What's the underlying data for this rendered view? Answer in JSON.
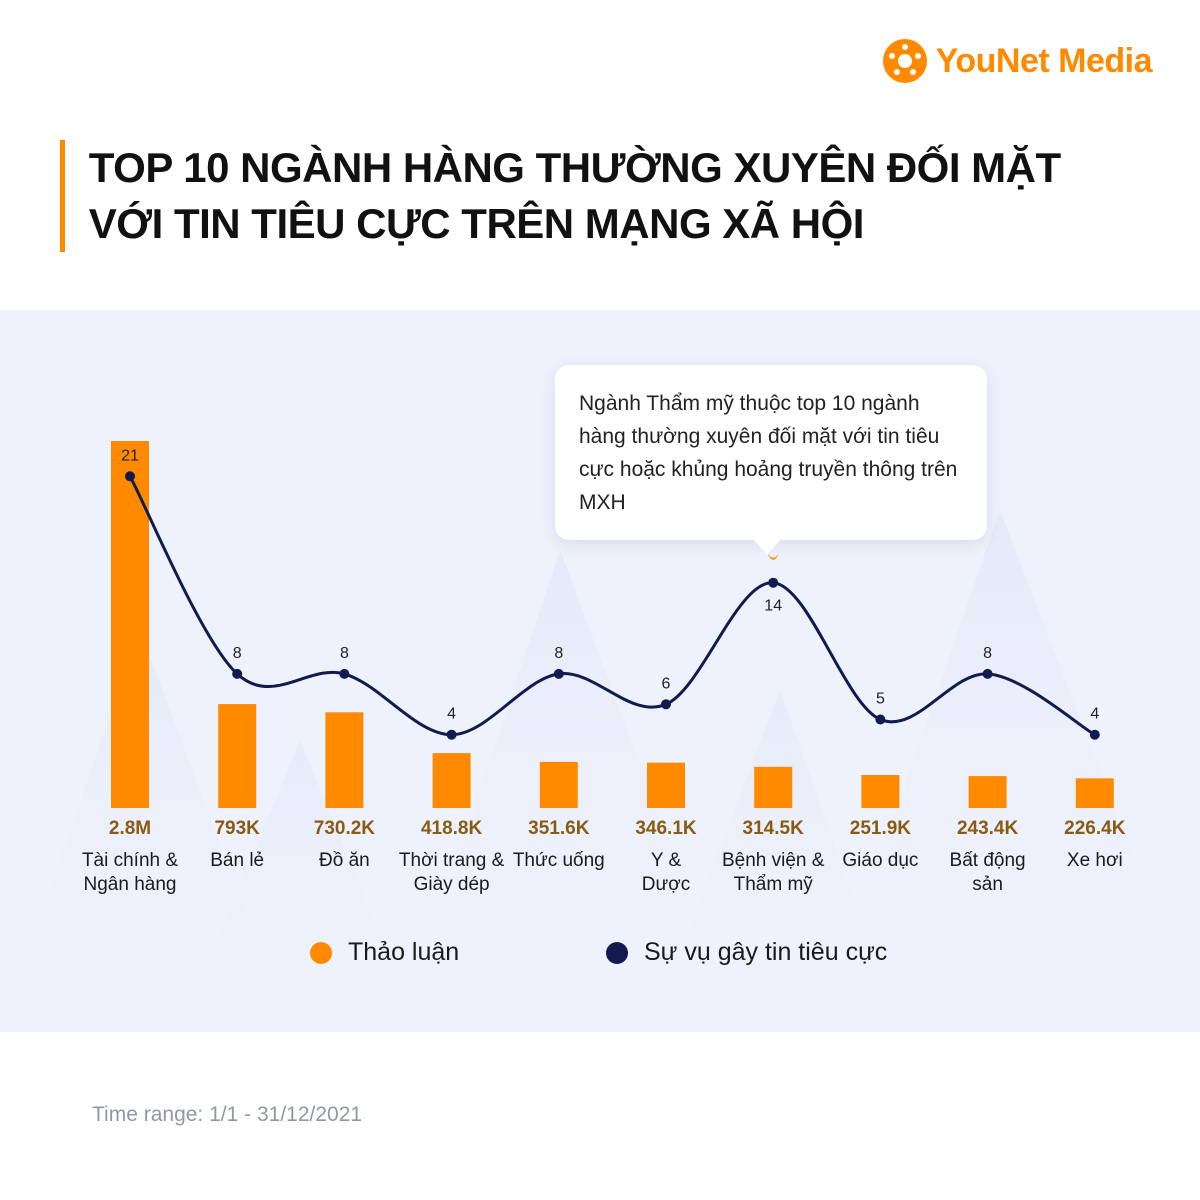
{
  "brand": {
    "word1": "YouNet",
    "word2": "Media",
    "accent": "#ff8a00",
    "icon": "younet-logo-icon"
  },
  "title": "TOP 10 NGÀNH HÀNG THƯỜNG XUYÊN ĐỐI MẶT VỚI TIN TIÊU CỰC TRÊN MẠNG XÃ HỘI",
  "callout": "Ngành Thẩm mỹ thuộc top 10 ngành hàng thường xuyên đối mặt với tin tiêu cực hoặc khủng hoảng truyền thông trên MXH",
  "footer": "Time range: 1/1 - 31/12/2021",
  "chart_data": {
    "type": "bar",
    "categories": [
      [
        "Tài chính &",
        "Ngân hàng"
      ],
      [
        "Bán lẻ"
      ],
      [
        "Đồ ăn"
      ],
      [
        "Thời trang &",
        "Giày dép"
      ],
      [
        "Thức uống"
      ],
      [
        "Y &",
        "Dược"
      ],
      [
        "Bệnh viện &",
        "Thẩm mỹ"
      ],
      [
        "Giáo dục"
      ],
      [
        "Bất động",
        "sản"
      ],
      [
        "Xe hơi"
      ]
    ],
    "series": [
      {
        "name": "Thảo luận",
        "type": "bar",
        "color": "#ff8a00",
        "values": [
          2800000,
          793000,
          730200,
          418800,
          351600,
          346100,
          314500,
          251900,
          243400,
          226400
        ],
        "labels": [
          "2.8M",
          "793K",
          "730.2K",
          "418.8K",
          "351.6K",
          "346.1K",
          "314.5K",
          "251.9K",
          "243.4K",
          "226.4K"
        ]
      },
      {
        "name": "Sự vụ gây tin tiêu cực",
        "type": "line",
        "color": "#121a4f",
        "values": [
          21,
          8,
          8,
          4,
          8,
          6,
          14,
          5,
          8,
          4
        ],
        "labels": [
          "21",
          "8",
          "8",
          "4",
          "8",
          "6",
          "14",
          "5",
          "8",
          "4"
        ]
      }
    ],
    "highlight_category_index": 6,
    "legend": "bottom-center",
    "grid": false
  }
}
